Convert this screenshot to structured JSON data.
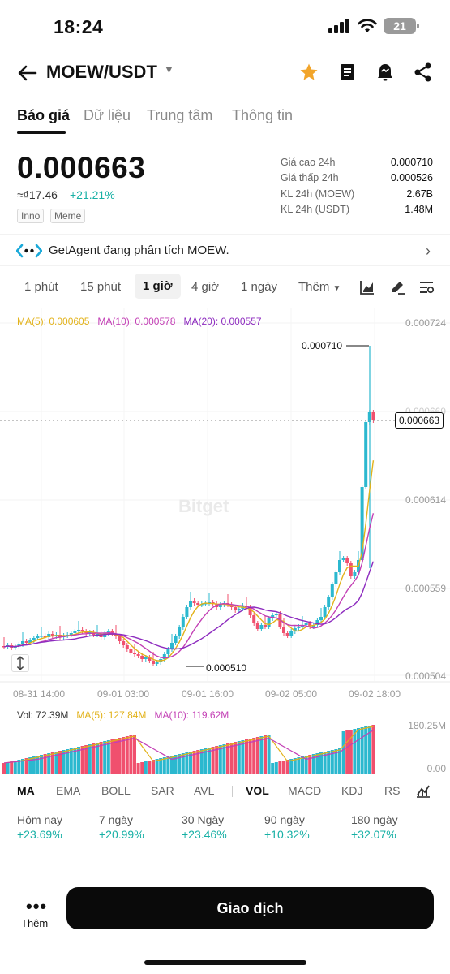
{
  "status": {
    "time": "18:24",
    "battery": "21"
  },
  "header": {
    "pair": "MOEW/USDT"
  },
  "tabs": [
    "Báo giá",
    "Dữ liệu",
    "Trung tâm",
    "Thông tin"
  ],
  "price": {
    "last": "0.000663",
    "fiat": "≈₫17.46",
    "change": "+21.21%",
    "tags": [
      "Inno",
      "Meme"
    ]
  },
  "stats": [
    {
      "label": "Giá cao 24h",
      "value": "0.000710"
    },
    {
      "label": "Giá thấp 24h",
      "value": "0.000526"
    },
    {
      "label": "KL 24h (MOEW)",
      "value": "2.67B"
    },
    {
      "label": "KL 24h (USDT)",
      "value": "1.48M"
    }
  ],
  "agent": {
    "text": "GetAgent đang phân tích MOEW."
  },
  "intervals": [
    "1 phút",
    "15 phút",
    "1 giờ",
    "4 giờ",
    "1 ngày",
    "Thêm"
  ],
  "active_interval": "1 giờ",
  "chart": {
    "ma_legend": {
      "ma5": "MA(5): 0.000605",
      "ma10": "MA(10): 0.000578",
      "ma20": "MA(20): 0.000557"
    },
    "y_ticks": [
      "0.000724",
      "0.000669",
      "0.000614",
      "0.000559",
      "0.000504"
    ],
    "x_ticks": [
      "08-31 14:00",
      "09-01 03:00",
      "09-01 16:00",
      "09-02 05:00",
      "09-02 18:00"
    ],
    "last_price_label": "0.000663",
    "high_label": "0.000710",
    "low_label": "0.000510",
    "watermark": "Bitget",
    "colors": {
      "up": "#2bb8cf",
      "down": "#f0506e",
      "ma5": "#e2b21a",
      "ma10": "#c33fb5",
      "ma20": "#8d2bbf"
    }
  },
  "volume": {
    "legend": {
      "vol": "Vol: 72.39M",
      "ma5": "MA(5): 127.84M",
      "ma10": "MA(10): 119.62M"
    },
    "axis_top": "180.25M",
    "axis_bottom": "0.00"
  },
  "indicators": [
    "MA",
    "EMA",
    "BOLL",
    "SAR",
    "AVL",
    "VOL",
    "MACD",
    "KDJ",
    "RS"
  ],
  "performance": [
    {
      "label": "Hôm nay",
      "value": "+23.69%"
    },
    {
      "label": "7 ngày",
      "value": "+20.99%"
    },
    {
      "label": "30 Ngày",
      "value": "+23.46%"
    },
    {
      "label": "90 ngày",
      "value": "+10.32%"
    },
    {
      "label": "180 ngày",
      "value": "+32.07%"
    }
  ],
  "bottom": {
    "more_label": "Thêm",
    "trade_label": "Giao dịch"
  }
}
